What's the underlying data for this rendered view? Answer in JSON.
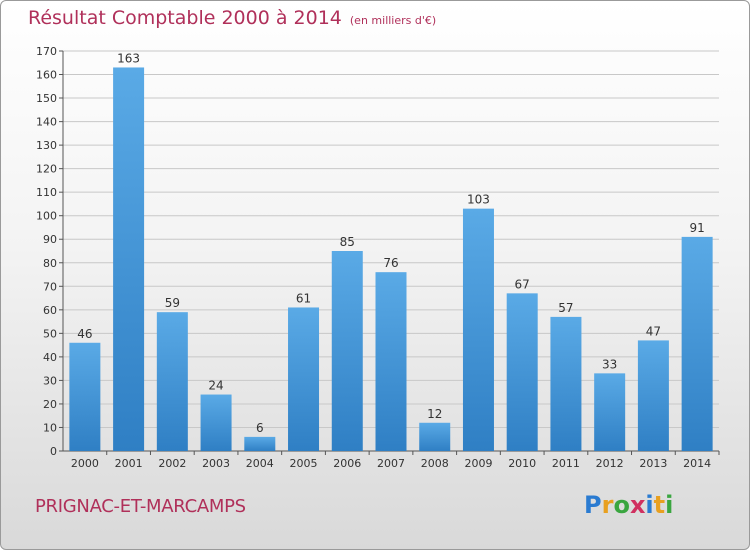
{
  "header": {
    "title": "Résultat Comptable 2000 à 2014",
    "unit": "(en milliers d'€)"
  },
  "footer": {
    "commune": "PRIGNAC-ET-MARCAMPS",
    "logo_letters": [
      "P",
      "r",
      "o",
      "x",
      "i",
      "t",
      "i"
    ],
    "logo_colors": [
      "#2a7bd1",
      "#e8a020",
      "#3aa640",
      "#d03060",
      "#2a7bd1",
      "#e8a020",
      "#3aa640"
    ]
  },
  "chart_data": {
    "type": "bar",
    "categories": [
      "2000",
      "2001",
      "2002",
      "2003",
      "2004",
      "2005",
      "2006",
      "2007",
      "2008",
      "2009",
      "2010",
      "2011",
      "2012",
      "2013",
      "2014"
    ],
    "values": [
      46,
      163,
      59,
      24,
      6,
      61,
      85,
      76,
      12,
      103,
      67,
      57,
      33,
      47,
      91
    ],
    "ylim": [
      0,
      170
    ],
    "yticks": [
      0,
      10,
      20,
      30,
      40,
      50,
      60,
      70,
      80,
      90,
      100,
      110,
      120,
      130,
      140,
      150,
      160,
      170
    ],
    "grid": true,
    "bar_color": "#4a9fdf",
    "grid_color": "#c8c8c8"
  }
}
